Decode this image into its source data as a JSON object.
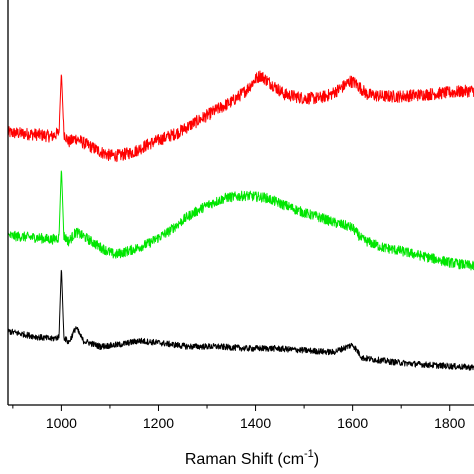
{
  "chart_data": {
    "type": "line",
    "title": "",
    "xlabel": "Raman Shift (cm",
    "xlabel_sup": "-1",
    "xlabel_close": ")",
    "ylabel": "",
    "xlim": [
      890,
      1850
    ],
    "ylim": [
      0,
      100
    ],
    "xticks": [
      "1000",
      "1200",
      "1400",
      "1600",
      "1800"
    ],
    "xtick_values": [
      1000,
      1200,
      1400,
      1600,
      1800
    ],
    "grid": false,
    "series": [
      {
        "color": "#ff0000",
        "points": [
          [
            890,
            70
          ],
          [
            950,
            69.5
          ],
          [
            980,
            69
          ],
          [
            995,
            70
          ],
          [
            1000,
            86
          ],
          [
            1005,
            70
          ],
          [
            1015,
            67.5
          ],
          [
            1030,
            68.5
          ],
          [
            1050,
            67
          ],
          [
            1080,
            65
          ],
          [
            1100,
            64
          ],
          [
            1120,
            64
          ],
          [
            1150,
            65
          ],
          [
            1180,
            67
          ],
          [
            1200,
            68
          ],
          [
            1240,
            70
          ],
          [
            1280,
            73
          ],
          [
            1320,
            76
          ],
          [
            1350,
            78
          ],
          [
            1380,
            81
          ],
          [
            1400,
            84
          ],
          [
            1410,
            85
          ],
          [
            1430,
            83
          ],
          [
            1460,
            80
          ],
          [
            1500,
            79
          ],
          [
            1530,
            79
          ],
          [
            1555,
            80
          ],
          [
            1580,
            82
          ],
          [
            1595,
            83.5
          ],
          [
            1605,
            83
          ],
          [
            1630,
            80
          ],
          [
            1660,
            79.5
          ],
          [
            1700,
            79.5
          ],
          [
            1750,
            80
          ],
          [
            1800,
            80.5
          ],
          [
            1850,
            81
          ]
        ],
        "noise": 1.6
      },
      {
        "color": "#00e600",
        "points": [
          [
            890,
            43
          ],
          [
            950,
            42.5
          ],
          [
            980,
            42
          ],
          [
            995,
            42.5
          ],
          [
            1000,
            61
          ],
          [
            1005,
            43
          ],
          [
            1015,
            41.5
          ],
          [
            1030,
            44
          ],
          [
            1050,
            42.5
          ],
          [
            1080,
            40
          ],
          [
            1110,
            38
          ],
          [
            1150,
            39.5
          ],
          [
            1180,
            41
          ],
          [
            1220,
            44
          ],
          [
            1260,
            48
          ],
          [
            1300,
            51
          ],
          [
            1340,
            53
          ],
          [
            1380,
            53.5
          ],
          [
            1420,
            53
          ],
          [
            1460,
            51
          ],
          [
            1500,
            49
          ],
          [
            1540,
            47.5
          ],
          [
            1560,
            46.5
          ],
          [
            1590,
            45.5
          ],
          [
            1600,
            45
          ],
          [
            1620,
            42
          ],
          [
            1660,
            40
          ],
          [
            1700,
            39
          ],
          [
            1750,
            37.5
          ],
          [
            1800,
            36
          ],
          [
            1850,
            35
          ]
        ],
        "noise": 1.3
      },
      {
        "color": "#000000",
        "points": [
          [
            890,
            18
          ],
          [
            950,
            16.5
          ],
          [
            980,
            16
          ],
          [
            995,
            16.5
          ],
          [
            1000,
            35
          ],
          [
            1005,
            16.5
          ],
          [
            1015,
            15
          ],
          [
            1030,
            19
          ],
          [
            1045,
            15.5
          ],
          [
            1080,
            14
          ],
          [
            1120,
            14.5
          ],
          [
            1160,
            15.5
          ],
          [
            1200,
            15
          ],
          [
            1260,
            14
          ],
          [
            1320,
            14
          ],
          [
            1380,
            13.5
          ],
          [
            1440,
            13.5
          ],
          [
            1500,
            13
          ],
          [
            1560,
            12.5
          ],
          [
            1600,
            14.5
          ],
          [
            1620,
            11
          ],
          [
            1680,
            10
          ],
          [
            1720,
            9.5
          ],
          [
            1780,
            9
          ],
          [
            1850,
            8.5
          ]
        ],
        "noise": 0.8
      }
    ]
  }
}
